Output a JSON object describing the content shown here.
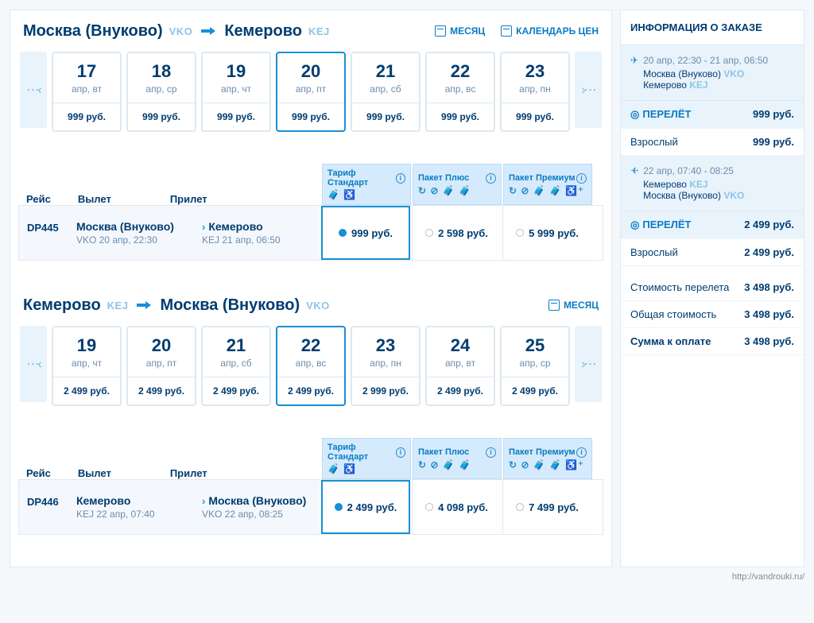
{
  "seg1": {
    "fromCity": "Москва (Внуково)",
    "fromCode": "VKO",
    "toCity": "Кемерово",
    "toCode": "KEJ",
    "monthLink": "МЕСЯЦ",
    "calLink": "КАЛЕНДАРЬ ЦЕН",
    "dates": [
      {
        "day": "17",
        "mon": "апр, вт",
        "price": "999 руб."
      },
      {
        "day": "18",
        "mon": "апр, ср",
        "price": "999 руб."
      },
      {
        "day": "19",
        "mon": "апр, чт",
        "price": "999 руб."
      },
      {
        "day": "20",
        "mon": "апр, пт",
        "price": "999 руб."
      },
      {
        "day": "21",
        "mon": "апр, сб",
        "price": "999 руб."
      },
      {
        "day": "22",
        "mon": "апр, вс",
        "price": "999 руб."
      },
      {
        "day": "23",
        "mon": "апр, пн",
        "price": "999 руб."
      }
    ],
    "selectedIndex": 3,
    "heads": {
      "reis": "Рейс",
      "vylet": "Вылет",
      "prilet": "Прилет"
    },
    "tariffs": [
      "Тариф Стандарт",
      "Пакет Плюс",
      "Пакет Премиум"
    ],
    "flight": {
      "code": "DP445",
      "depCity": "Москва (Внуково)",
      "depMeta": "VKO 20 апр, 22:30",
      "arrCity": "Кемерово",
      "arrMeta": "KEJ 21 апр, 06:50",
      "prices": [
        "999 руб.",
        "2 598 руб.",
        "5 999 руб."
      ]
    }
  },
  "seg2": {
    "fromCity": "Кемерово",
    "fromCode": "KEJ",
    "toCity": "Москва (Внуково)",
    "toCode": "VKO",
    "monthLink": "МЕСЯЦ",
    "dates": [
      {
        "day": "19",
        "mon": "апр, чт",
        "price": "2 499 руб."
      },
      {
        "day": "20",
        "mon": "апр, пт",
        "price": "2 499 руб."
      },
      {
        "day": "21",
        "mon": "апр, сб",
        "price": "2 499 руб."
      },
      {
        "day": "22",
        "mon": "апр, вс",
        "price": "2 499 руб."
      },
      {
        "day": "23",
        "mon": "апр, пн",
        "price": "2 999 руб."
      },
      {
        "day": "24",
        "mon": "апр, вт",
        "price": "2 499 руб."
      },
      {
        "day": "25",
        "mon": "апр, ср",
        "price": "2 499 руб."
      }
    ],
    "selectedIndex": 3,
    "heads": {
      "reis": "Рейс",
      "vylet": "Вылет",
      "prilet": "Прилет"
    },
    "tariffs": [
      "Тариф Стандарт",
      "Пакет Плюс",
      "Пакет Премиум"
    ],
    "flight": {
      "code": "DP446",
      "depCity": "Кемерово",
      "depMeta": "KEJ 22 апр, 07:40",
      "arrCity": "Москва (Внуково)",
      "arrMeta": "VKO 22 апр, 08:25",
      "prices": [
        "2 499 руб.",
        "4 098 руб.",
        "7 499 руб."
      ]
    }
  },
  "side": {
    "title": "ИНФОРМАЦИЯ О ЗАКАЗЕ",
    "out": {
      "time": "20 апр, 22:30 - 21 апр, 06:50",
      "from": "Москва (Внуково)",
      "fromCode": "VKO",
      "to": "Кемерово",
      "toCode": "KEJ"
    },
    "outFare": {
      "label": "ПЕРЕЛЁТ",
      "value": "999 руб.",
      "pax": "Взрослый",
      "paxValue": "999 руб."
    },
    "ret": {
      "time": "22 апр, 07:40 - 08:25",
      "from": "Кемерово",
      "fromCode": "KEJ",
      "to": "Москва (Внуково)",
      "toCode": "VKO"
    },
    "retFare": {
      "label": "ПЕРЕЛЁТ",
      "value": "2 499 руб.",
      "pax": "Взрослый",
      "paxValue": "2 499 руб."
    },
    "totals": [
      {
        "label": "Стоимость перелета",
        "value": "3 498 руб."
      },
      {
        "label": "Общая стоимость",
        "value": "3 498 руб."
      },
      {
        "label": "Сумма к оплате",
        "value": "3 498 руб."
      }
    ]
  },
  "footerUrl": "http://vandrouki.ru/"
}
